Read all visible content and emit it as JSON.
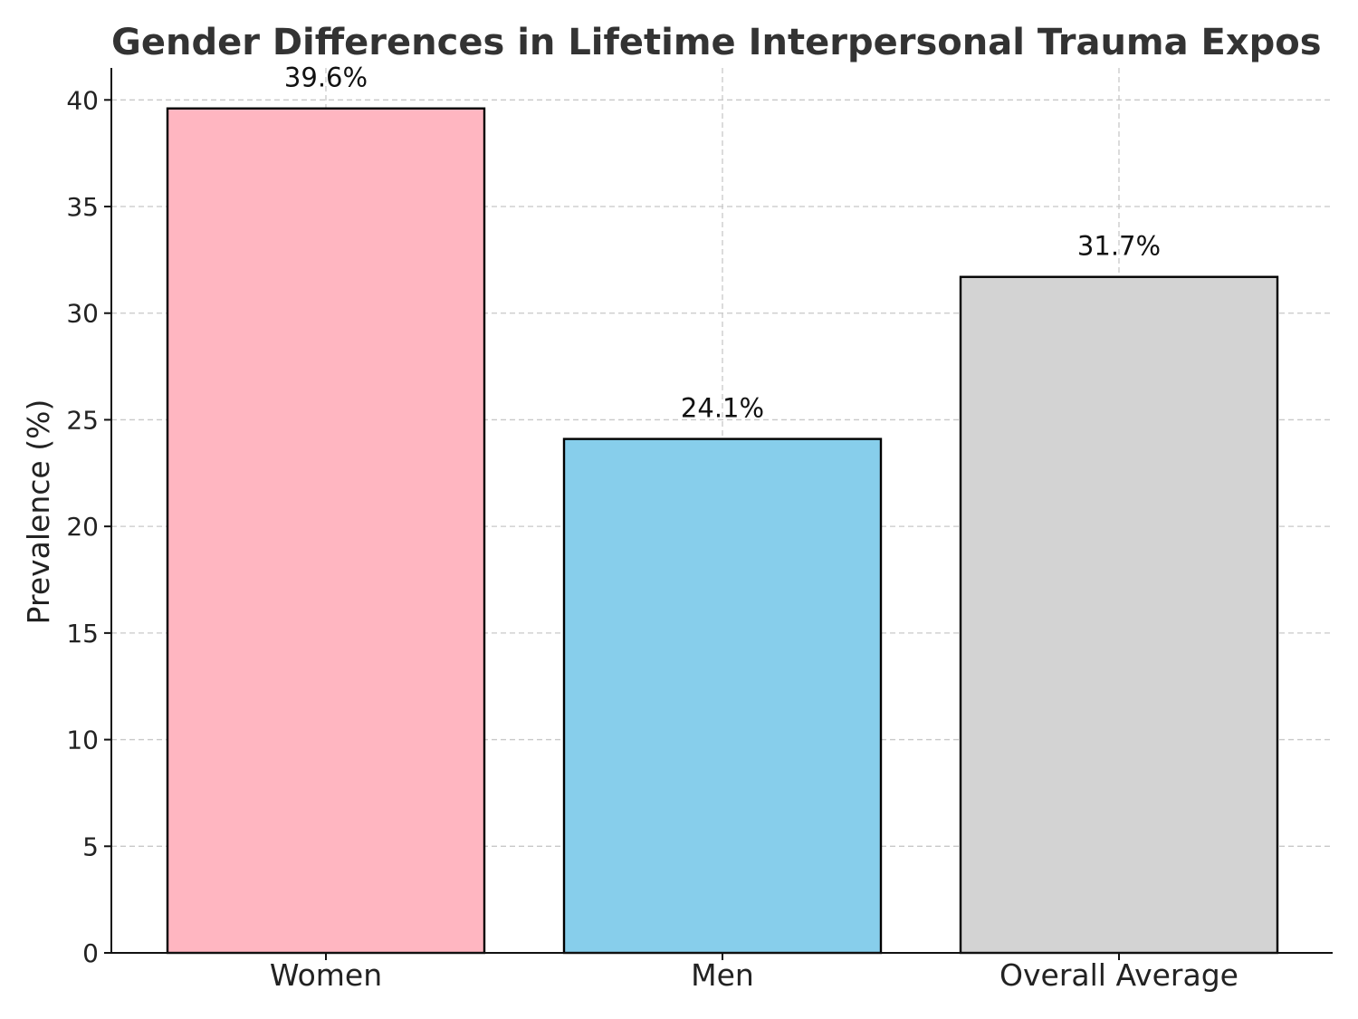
{
  "chart_data": {
    "type": "bar",
    "title": "Gender Differences in Lifetime Interpersonal Trauma Expos",
    "xlabel": "",
    "ylabel": "Prevalence (%)",
    "categories": [
      "Women",
      "Men",
      "Overall Average"
    ],
    "values": [
      39.6,
      24.1,
      31.7
    ],
    "value_labels": [
      "39.6%",
      "24.1%",
      "31.7%"
    ],
    "colors": [
      "#FFB6C1",
      "#87CEEB",
      "#D3D3D3"
    ],
    "ylim": [
      0,
      41.5
    ],
    "yticks": [
      0,
      5,
      10,
      15,
      20,
      25,
      30,
      35,
      40
    ],
    "grid": true
  }
}
